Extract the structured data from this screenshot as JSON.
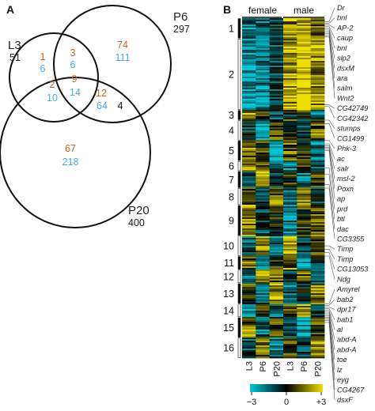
{
  "panelA": {
    "label": "A",
    "sets": [
      {
        "name": "L3",
        "total": "51"
      },
      {
        "name": "P6",
        "total": "297"
      },
      {
        "name": "P20",
        "total": "400"
      }
    ],
    "regions": [
      {
        "id": "l3-only",
        "orange": "1",
        "blue": "6"
      },
      {
        "id": "l3-p6",
        "orange": "3",
        "blue": "6"
      },
      {
        "id": "p6-only",
        "orange": "74",
        "blue": "111"
      },
      {
        "id": "l3-p20",
        "orange": "2",
        "blue": "10"
      },
      {
        "id": "all-three",
        "orange": "9",
        "blue": "14"
      },
      {
        "id": "p6-p20",
        "orange": "12",
        "blue": "64",
        "black": "4"
      },
      {
        "id": "p20-only",
        "orange": "67",
        "blue": "218"
      }
    ],
    "colors": {
      "orange": "#c8641c",
      "blue": "#4aa8e0"
    }
  },
  "panelB": {
    "label": "B",
    "groups": [
      "female",
      "male"
    ],
    "columns": [
      "L3",
      "P6",
      "P20",
      "L3",
      "P6",
      "P20"
    ],
    "clusters": [
      "1",
      "2",
      "3",
      "4",
      "5",
      "6",
      "7",
      "8",
      "9",
      "10",
      "11",
      "12",
      "13",
      "14",
      "15",
      "16"
    ],
    "genes": [
      "Dr",
      "bnl",
      "AP-2",
      "caup",
      "bnl",
      "slp2",
      "dsxM",
      "ara",
      "salm",
      "Wnt2",
      "CG42749",
      "CG42342",
      "stumps",
      "CG1499",
      "Phk-3",
      "ac",
      "salr",
      "msl-2",
      "Poxn",
      "ap",
      "prd",
      "btl",
      "dac",
      "CG3355",
      "Timp",
      "Timp",
      "CG13053",
      "Ndg",
      "Amyrel",
      "bab2",
      "dpr17",
      "bab1",
      "al",
      "abd-A",
      "abd-A",
      "toe",
      "lz",
      "eyg",
      "CG4267",
      "dsxF"
    ],
    "colorbar": {
      "min": "−3",
      "mid": "0",
      "max": "+3",
      "colors": [
        "#00c8d8",
        "#000000",
        "#f0e000"
      ]
    }
  }
}
